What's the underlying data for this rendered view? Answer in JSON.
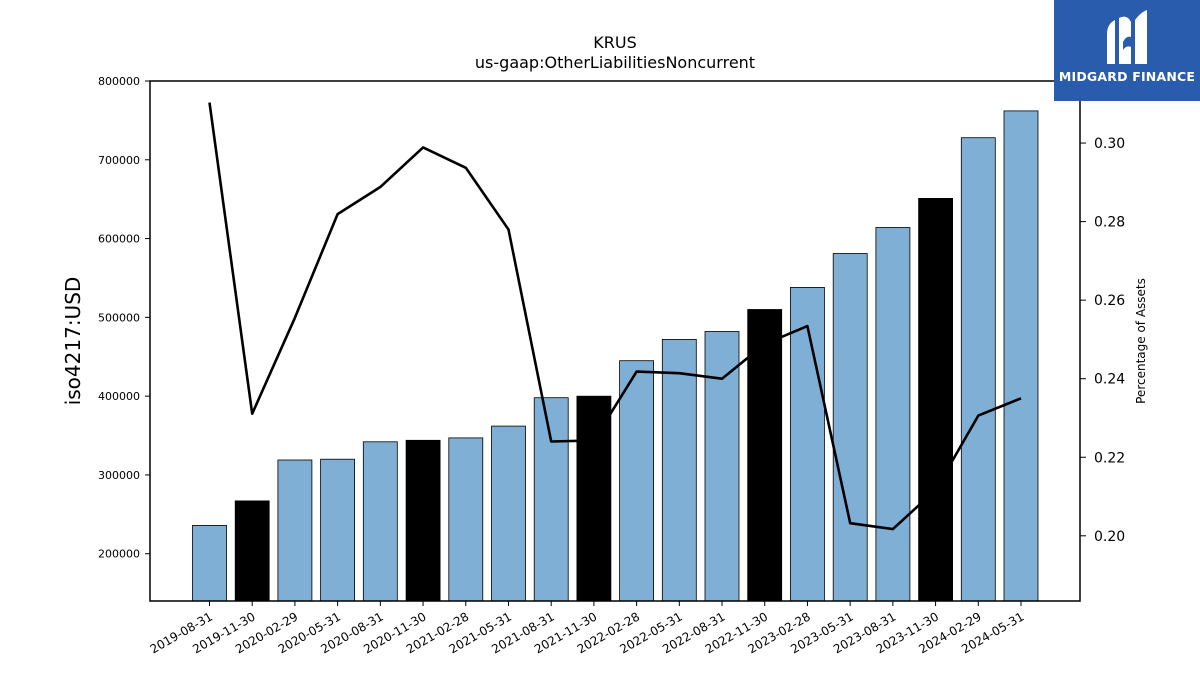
{
  "chart_data": {
    "type": "bar",
    "title": "KRUS",
    "subtitle": "us-gaap:OtherLiabilitiesNoncurrent",
    "ylabel": "iso4217:USD",
    "y2label": "Percentage of Assets",
    "categories": [
      "2019-08-31",
      "2019-11-30",
      "2020-02-29",
      "2020-05-31",
      "2020-08-31",
      "2020-11-30",
      "2021-02-28",
      "2021-05-31",
      "2021-08-31",
      "2021-11-30",
      "2022-02-28",
      "2022-05-31",
      "2022-08-31",
      "2022-11-30",
      "2023-02-28",
      "2023-05-31",
      "2023-08-31",
      "2023-11-30",
      "2024-02-29",
      "2024-05-31"
    ],
    "values": [
      236000,
      267000,
      319000,
      320000,
      342000,
      344000,
      347000,
      362000,
      398000,
      400000,
      445000,
      472000,
      482000,
      510000,
      538000,
      581000,
      614000,
      651000,
      728000,
      762000
    ],
    "highlight": [
      false,
      true,
      false,
      false,
      false,
      true,
      false,
      false,
      false,
      true,
      false,
      false,
      false,
      true,
      false,
      false,
      false,
      true,
      false,
      false
    ],
    "pct_series": {
      "values": [
        0.3103,
        0.2311,
        0.2555,
        0.2819,
        0.2888,
        0.2989,
        0.2937,
        0.278,
        0.224,
        0.2243,
        0.2418,
        0.2414,
        0.24,
        0.2488,
        0.2534,
        0.2032,
        0.2017,
        0.2117,
        0.2306,
        0.235
      ]
    },
    "ylim": [
      140000,
      800000
    ],
    "y_ticks": [
      "200000",
      "300000",
      "400000",
      "500000",
      "600000",
      "700000",
      "800000"
    ],
    "y2lim": [
      0.1834,
      0.3158
    ],
    "y2_ticks": [
      "0.20",
      "0.22",
      "0.24",
      "0.26",
      "0.28",
      "0.30"
    ],
    "colors": {
      "bar": "#7fafd4",
      "bar_highlight": "#000000",
      "line": "#000000"
    }
  },
  "logo": {
    "text": "MIDGARD FINANCE",
    "background": "#2a5cad"
  }
}
